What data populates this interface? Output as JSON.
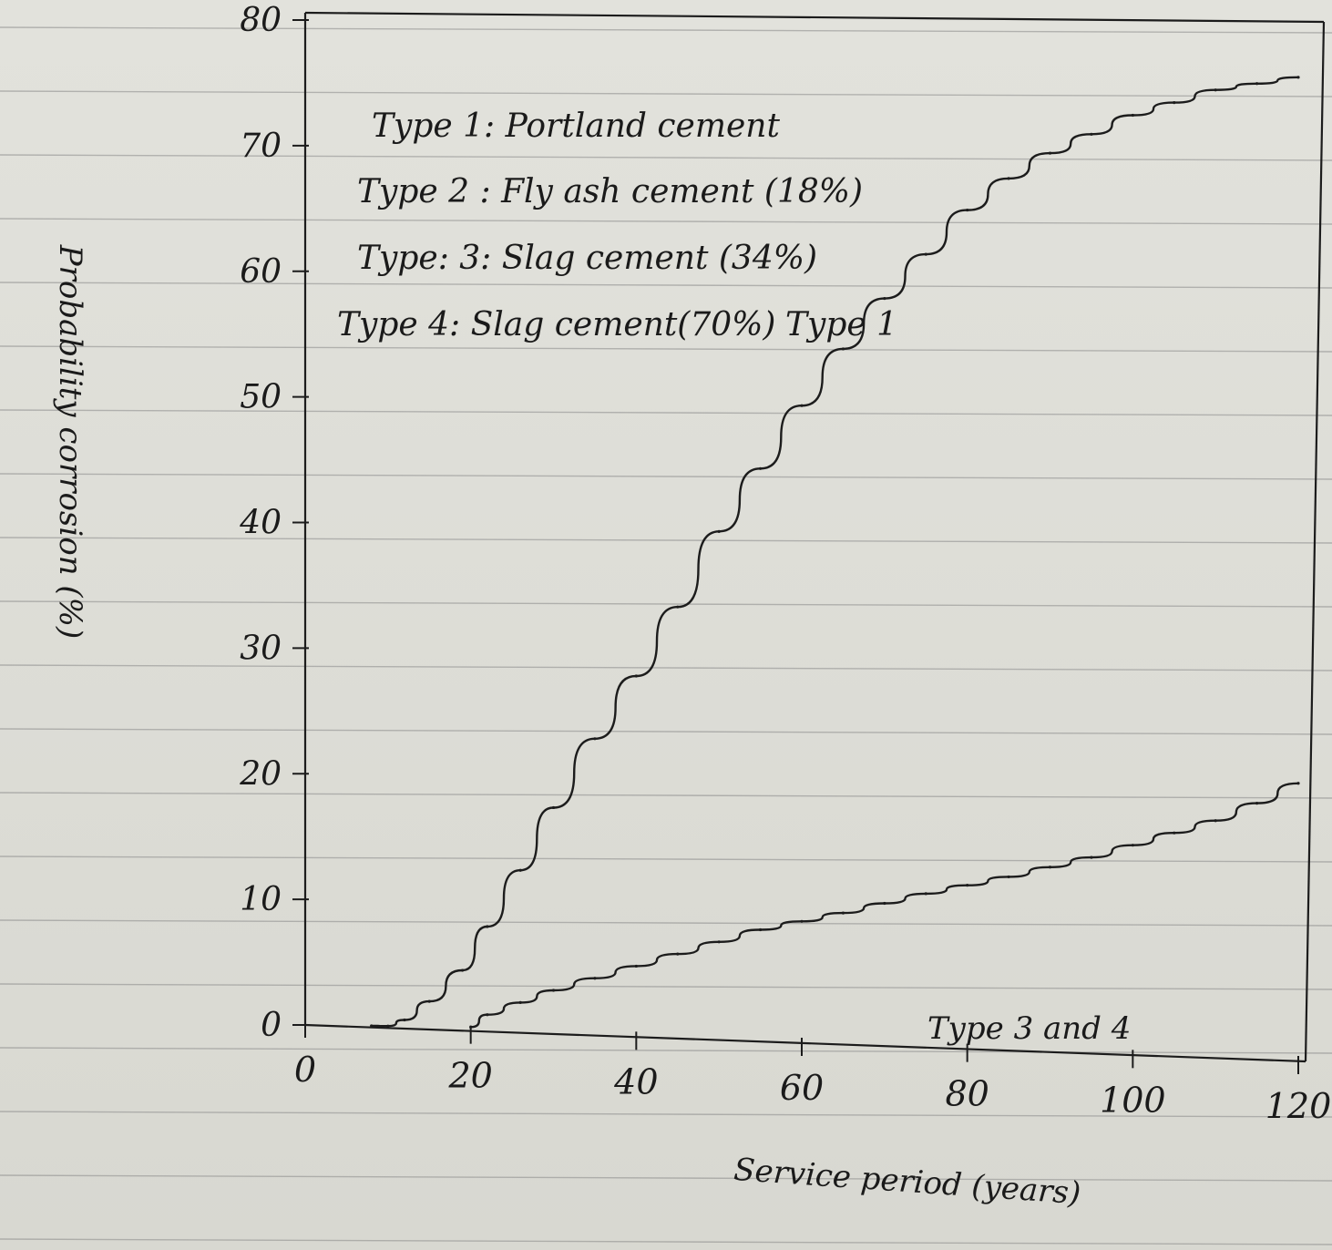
{
  "chart_data": {
    "type": "line",
    "xlabel": "Service period (years)",
    "ylabel": "Probability corrosion (%)",
    "xlim": [
      0,
      120
    ],
    "ylim": [
      0,
      80
    ],
    "x_ticks": [
      "0",
      "20",
      "40",
      "60",
      "80",
      "100",
      "120"
    ],
    "y_ticks": [
      "0",
      "10",
      "20",
      "30",
      "40",
      "50",
      "60",
      "70",
      "80"
    ],
    "legend_lines": [
      "Type 1:  Portland cement",
      "Type 2 :  Fly ash cement (18%)",
      "Type: 3:  Slag cement (34%)",
      "Type 4: Slag cement(70%)"
    ],
    "series": [
      {
        "name": "Type 1",
        "x": [
          8,
          10,
          12,
          15,
          19,
          22,
          26,
          30,
          35,
          40,
          45,
          50,
          55,
          60,
          65,
          70,
          75,
          80,
          85,
          90,
          95,
          100,
          105,
          110,
          115,
          120
        ],
        "y": [
          0,
          0,
          0.5,
          2,
          4.5,
          8,
          12.5,
          17.5,
          23,
          28,
          33.5,
          39.5,
          44.5,
          49.5,
          54,
          58,
          61.5,
          65,
          67.5,
          69.5,
          71,
          72.5,
          73.5,
          74.5,
          75,
          75.5
        ]
      },
      {
        "name": "Type 3 and 4",
        "x": [
          20,
          22,
          26,
          30,
          35,
          40,
          45,
          50,
          55,
          60,
          65,
          70,
          75,
          80,
          85,
          90,
          95,
          100,
          105,
          110,
          115,
          120
        ],
        "y": [
          0,
          1,
          2,
          3,
          4,
          5,
          6,
          7,
          8,
          8.7,
          9.4,
          10.2,
          11,
          11.7,
          12.4,
          13.2,
          14,
          15,
          16,
          17,
          18.4,
          20
        ]
      }
    ],
    "annotations": [
      "Type 1",
      "Type 3 and 4"
    ]
  }
}
